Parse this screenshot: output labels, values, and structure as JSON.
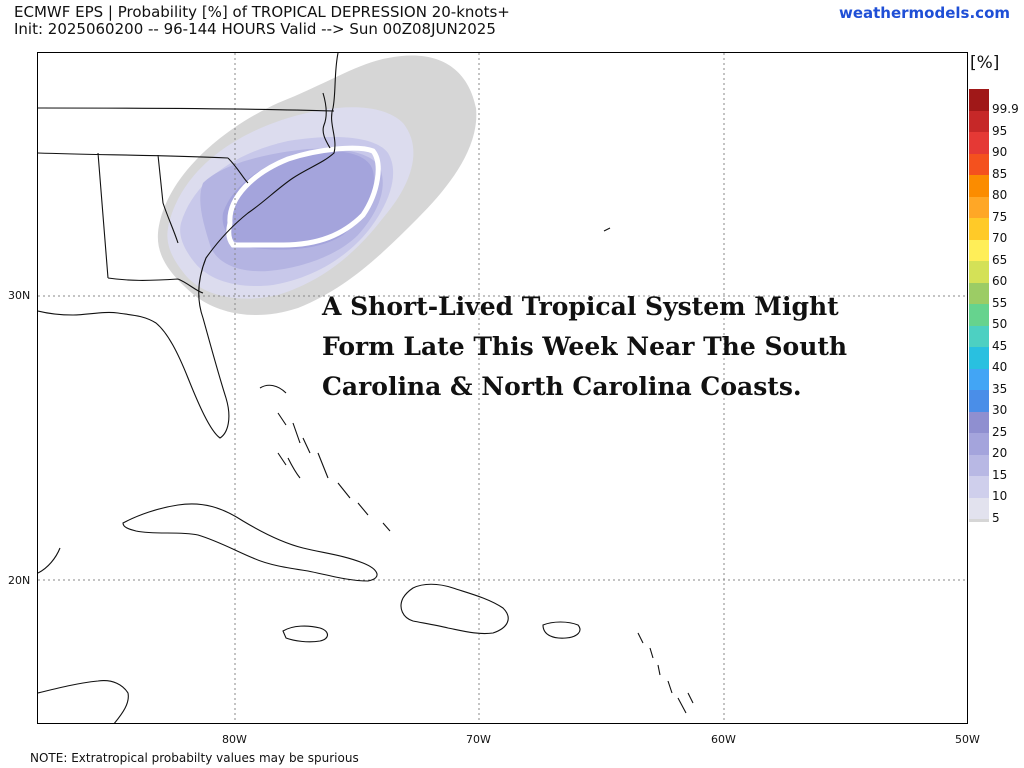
{
  "header": {
    "title": "ECMWF EPS | Probability [%] of TROPICAL DEPRESSION 20-knots+",
    "subtitle": "Init: 2025060200 -- 96-144 HOURS Valid --> Sun 00Z08JUN2025",
    "source": "weathermodels.com"
  },
  "map": {
    "lat_labels": [
      "30N",
      "20N"
    ],
    "lon_labels": [
      "80W",
      "70W",
      "60W",
      "50W"
    ],
    "annotation_lines": [
      "A Short-Lived Tropical System Might",
      "Form Late This Week Near The South",
      "Carolina & North Carolina Coasts."
    ],
    "colors": {
      "land_outline": "#111111",
      "grid": "#888888",
      "prob_5": "#d6d6d6",
      "prob_10": "#dcdcee",
      "prob_15": "#c8c8ea",
      "prob_20": "#b4b4e2",
      "prob_25": "#a4a4dc",
      "contour": "#ffffff"
    }
  },
  "legend": {
    "unit": "[%]",
    "levels": [
      {
        "label": "99.9",
        "color": "#a01818"
      },
      {
        "label": "95",
        "color": "#c62828"
      },
      {
        "label": "90",
        "color": "#e53935"
      },
      {
        "label": "85",
        "color": "#f4511e"
      },
      {
        "label": "80",
        "color": "#fb8c00"
      },
      {
        "label": "75",
        "color": "#ffa726"
      },
      {
        "label": "70",
        "color": "#ffca28"
      },
      {
        "label": "65",
        "color": "#ffee58"
      },
      {
        "label": "60",
        "color": "#d4e157"
      },
      {
        "label": "55",
        "color": "#9ccc65"
      },
      {
        "label": "50",
        "color": "#66d38e"
      },
      {
        "label": "45",
        "color": "#4dd0c2"
      },
      {
        "label": "40",
        "color": "#29c0e0"
      },
      {
        "label": "35",
        "color": "#42a5f5"
      },
      {
        "label": "30",
        "color": "#4a8ee8"
      },
      {
        "label": "25",
        "color": "#8f8fd0"
      },
      {
        "label": "20",
        "color": "#a4a4dc"
      },
      {
        "label": "15",
        "color": "#b8b8e4"
      },
      {
        "label": "10",
        "color": "#cfcfec"
      },
      {
        "label": "5",
        "color": "#e2e2ee"
      }
    ],
    "bottom_swatch_color": "#d6d6d6"
  },
  "footer": {
    "note": "NOTE: Extratropical probabilty values may be spurious"
  }
}
